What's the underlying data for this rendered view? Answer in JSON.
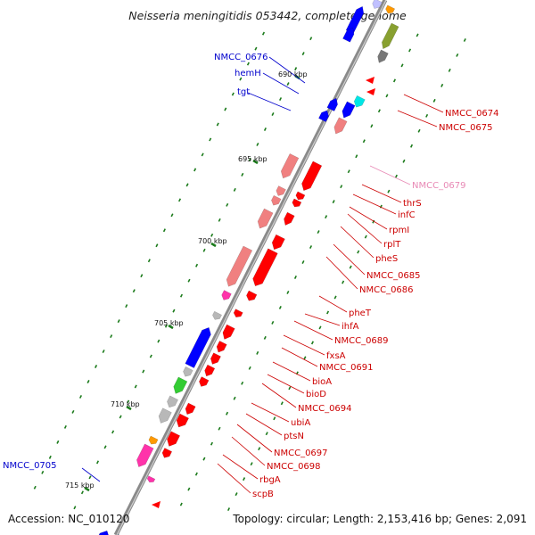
{
  "title": "Neisseria meningitidis 053442, complete genome",
  "accession": "Accession: NC_010120",
  "summary": "Topology: circular; Length: 2,153,416 bp; Genes: 2,091",
  "colors": {
    "backbone": "#808080",
    "tick": "#1a7a1a",
    "forward_label": "#0000cc",
    "reverse_label": "#cc0000",
    "pseudo_label": "#e889b5",
    "gene_red": "#ff0000",
    "gene_pink": "#f08080",
    "gene_blue": "#0000ff",
    "gene_grey": "#b8b8b8",
    "gene_green": "#33cc33",
    "gene_cyan": "#00e5e5",
    "gene_olive": "#88a030",
    "gene_orange": "#ff9900",
    "gene_magenta": "#ff33aa",
    "gene_steelblue": "#4a80c0"
  },
  "ticks": [
    "690 kbp",
    "695 kbp",
    "700 kbp",
    "705 kbp",
    "710 kbp",
    "715 kbp"
  ],
  "labels_left": [
    "NMCC_0676",
    "hemH",
    "tgt",
    "NMCC_0705"
  ],
  "labels_right": [
    "NMCC_0674",
    "NMCC_0675",
    "NMCC_0679",
    "thrS",
    "infC",
    "rpmI",
    "rplT",
    "pheS",
    "NMCC_0685",
    "NMCC_0686",
    "pheT",
    "ihfA",
    "NMCC_0689",
    "fxsA",
    "NMCC_0691",
    "bioA",
    "bioD",
    "NMCC_0694",
    "ubiA",
    "ptsN",
    "NMCC_0697",
    "NMCC_0698",
    "rbgA",
    "scpB"
  ]
}
